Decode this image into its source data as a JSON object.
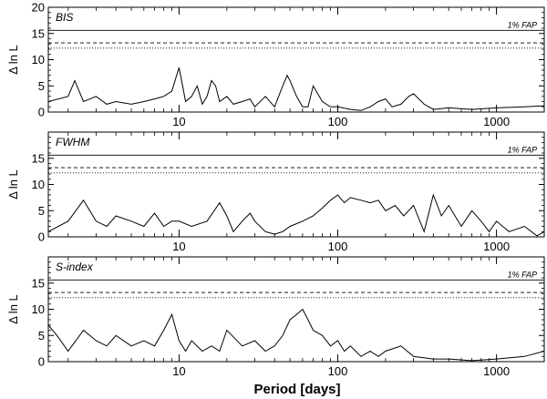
{
  "chart_data": {
    "type": "line",
    "x_scale": "log",
    "xlim": [
      1.5,
      2000
    ],
    "ylim": [
      0,
      20
    ],
    "xlabel": "Period [days]",
    "ylabel": "Δ ln L",
    "x_tick_labels": [
      "10",
      "100",
      "1000"
    ],
    "x_tick_values": [
      10,
      100,
      1000
    ],
    "y_tick_labels": [
      "0",
      "5",
      "10",
      "15",
      "20"
    ],
    "y_tick_values": [
      0,
      5,
      10,
      15,
      20
    ],
    "threshold_lines": [
      {
        "style": "solid",
        "value": 15.6
      },
      {
        "style": "dashed",
        "value": 13.2
      },
      {
        "style": "dotted",
        "value": 12.2
      }
    ],
    "fap_label": "1% FAP",
    "panels": [
      {
        "label": "BIS",
        "series": [
          {
            "x": [
              1.5,
              2,
              2.2,
              2.5,
              3,
              3.5,
              4,
              5,
              6,
              7,
              8,
              9,
              10,
              11,
              12,
              13,
              14,
              15,
              16,
              17,
              18,
              20,
              22,
              25,
              28,
              30,
              35,
              40,
              45,
              48,
              50,
              55,
              60,
              65,
              70,
              80,
              90,
              100,
              120,
              140,
              160,
              180,
              200,
              220,
              250,
              280,
              300,
              350,
              400,
              500,
              700,
              1000,
              1500,
              2000
            ],
            "y": [
              2,
              3,
              6,
              2,
              3,
              1.5,
              2,
              1.5,
              2,
              2.5,
              3,
              4,
              8.5,
              2,
              3,
              5,
              1.5,
              3,
              6,
              5,
              2,
              3,
              1.5,
              2,
              2.5,
              1,
              3,
              1,
              5,
              7,
              6,
              3,
              1,
              1,
              5,
              2,
              1,
              1,
              0.5,
              0.3,
              1,
              2,
              2.5,
              1,
              1.5,
              3,
              3.5,
              1.5,
              0.5,
              0.8,
              0.5,
              0.8,
              1,
              1.2
            ]
          }
        ]
      },
      {
        "label": "FWHM",
        "series": [
          {
            "x": [
              1.5,
              2,
              2.5,
              3,
              3.5,
              4,
              5,
              6,
              7,
              8,
              9,
              10,
              12,
              15,
              18,
              20,
              22,
              25,
              28,
              30,
              35,
              40,
              45,
              50,
              60,
              70,
              80,
              90,
              100,
              110,
              120,
              140,
              160,
              180,
              200,
              230,
              260,
              300,
              350,
              400,
              450,
              500,
              600,
              700,
              800,
              900,
              1000,
              1200,
              1500,
              1800,
              2000
            ],
            "y": [
              1,
              3,
              7,
              3,
              2,
              4,
              3,
              2,
              4.5,
              2,
              3,
              3,
              2,
              3,
              6.5,
              4,
              1,
              3,
              4.5,
              3,
              1,
              0.5,
              1,
              2,
              3,
              4,
              5.5,
              7,
              8,
              6.5,
              7.5,
              7,
              6.5,
              7,
              5,
              6,
              4,
              6,
              1,
              8,
              4,
              6,
              2,
              5,
              3,
              1,
              3,
              1,
              2,
              0.2,
              1
            ]
          }
        ]
      },
      {
        "label": "S-index",
        "series": [
          {
            "x": [
              1.5,
              1.7,
              2,
              2.5,
              3,
              3.5,
              4,
              5,
              6,
              7,
              8,
              9,
              10,
              11,
              12,
              14,
              16,
              18,
              20,
              25,
              30,
              35,
              40,
              45,
              50,
              55,
              60,
              65,
              70,
              80,
              90,
              100,
              110,
              120,
              140,
              160,
              180,
              200,
              250,
              300,
              400,
              500,
              700,
              1000,
              1500,
              2000
            ],
            "y": [
              7,
              5,
              2,
              6,
              4,
              3,
              5,
              3,
              4,
              3,
              6,
              9,
              4,
              2,
              4,
              2,
              3,
              2,
              6,
              3,
              4,
              2,
              3,
              5,
              8,
              9,
              10,
              8,
              6,
              5,
              3,
              4,
              2,
              3,
              1,
              2,
              1,
              2,
              3,
              1,
              0.5,
              0.5,
              0.2,
              0.5,
              1,
              2
            ]
          }
        ]
      }
    ]
  }
}
